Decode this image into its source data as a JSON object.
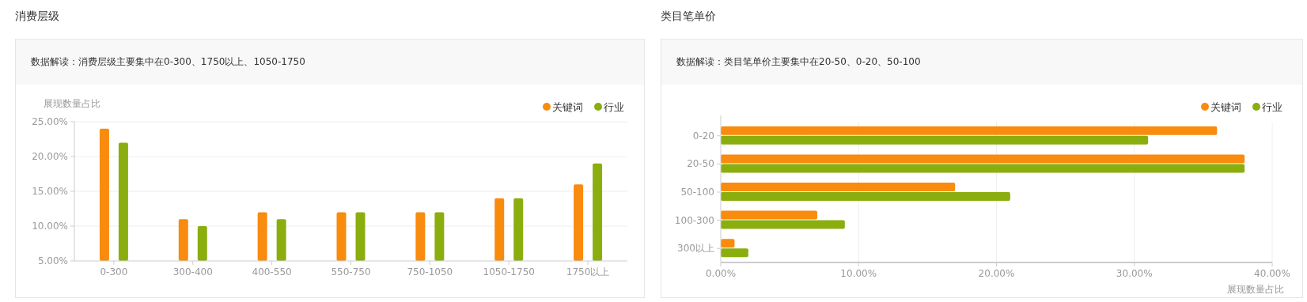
{
  "chart_data": [
    {
      "type": "bar",
      "title": "消费层级",
      "subtitle": "数据解读：消费层级主要集中在0-300、1750以上、1050-1750",
      "ylabel": "展现数量占比",
      "categories": [
        "0-300",
        "300-400",
        "400-550",
        "550-750",
        "750-1050",
        "1050-1750",
        "1750以上"
      ],
      "series": [
        {
          "name": "关键词",
          "color": "#f98b0e",
          "values": [
            24,
            11,
            12,
            12,
            12,
            14,
            16
          ]
        },
        {
          "name": "行业",
          "color": "#8bae0f",
          "values": [
            22,
            10,
            11,
            12,
            12,
            14,
            19
          ]
        }
      ],
      "ylim": [
        5,
        25
      ],
      "yticks": [
        {
          "value": 5,
          "label": "5.00%"
        },
        {
          "value": 10,
          "label": "10.00%"
        },
        {
          "value": 15,
          "label": "15.00%"
        },
        {
          "value": 20,
          "label": "20.00%"
        },
        {
          "value": 25,
          "label": "25.00%"
        }
      ],
      "grid": "y",
      "legend": "top right"
    },
    {
      "type": "bar",
      "orientation": "horizontal",
      "title": "类目笔单价",
      "subtitle": "数据解读：类目笔单价主要集中在20-50、0-20、50-100",
      "xlabel": "展现数量占比",
      "categories": [
        "0-20",
        "20-50",
        "50-100",
        "100-300",
        "300以上"
      ],
      "series": [
        {
          "name": "关键词",
          "color": "#f98b0e",
          "values": [
            36,
            38,
            17,
            7,
            1
          ]
        },
        {
          "name": "行业",
          "color": "#8bae0f",
          "values": [
            31,
            38,
            21,
            9,
            2
          ]
        }
      ],
      "xlim": [
        0,
        40
      ],
      "xticks": [
        {
          "value": 0,
          "label": "0.00%"
        },
        {
          "value": 10,
          "label": "10.00%"
        },
        {
          "value": 20,
          "label": "20.00%"
        },
        {
          "value": 30,
          "label": "30.00%"
        },
        {
          "value": 40,
          "label": "40.00%"
        }
      ],
      "grid": "x",
      "legend": "top right"
    }
  ]
}
